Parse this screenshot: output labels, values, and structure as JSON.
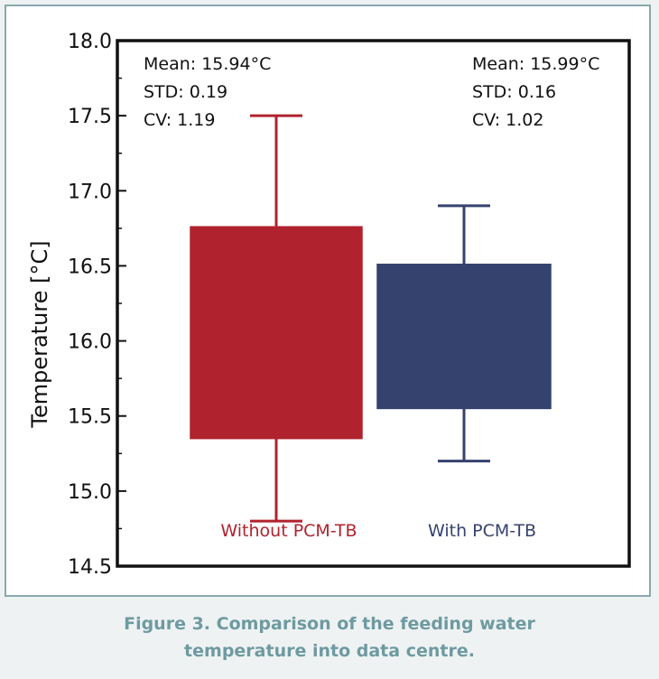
{
  "chart_data": {
    "type": "box",
    "ylabel": "Temperature [°C]",
    "ylim": [
      14.5,
      18.0
    ],
    "yticks": [
      "14.5",
      "15.0",
      "15.5",
      "16.0",
      "16.5",
      "17.0",
      "17.5",
      "18.0"
    ],
    "series": [
      {
        "name": "Without  PCM-TB",
        "color": "#b0232e",
        "whisker_low": 14.8,
        "box_low": 15.35,
        "box_high": 16.76,
        "whisker_high": 17.5,
        "stats": [
          "Mean: 15.94°C",
          "STD: 0.19",
          "CV: 1.19"
        ]
      },
      {
        "name": "With  PCM-TB",
        "color": "#36426e",
        "whisker_low": 15.2,
        "box_low": 15.55,
        "box_high": 16.51,
        "whisker_high": 16.9,
        "stats": [
          "Mean: 15.99°C",
          "STD: 0.16",
          "CV: 1.02"
        ]
      }
    ]
  },
  "caption": {
    "line1": "Figure 3. Comparison of the feeding water",
    "line2": "temperature into data centre."
  }
}
